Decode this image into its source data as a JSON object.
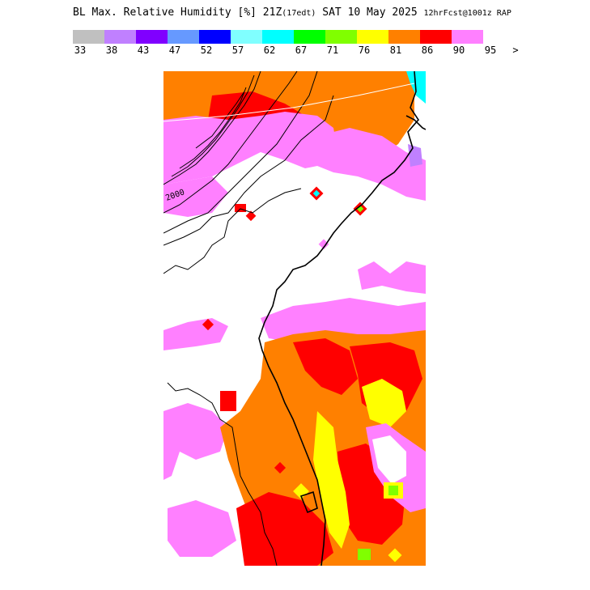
{
  "header": {
    "title": "BL Max. Relative Humidity [%] 21Z",
    "local_time": "(17edt)",
    "date": "SAT 10 May 2025",
    "forecast": "12hrFcst@1001z RAP"
  },
  "legend": {
    "colors": [
      "#c0c0c0",
      "#c080ff",
      "#8000ff",
      "#6699ff",
      "#0000ff",
      "#80ffff",
      "#00ffff",
      "#00ff00",
      "#80ff00",
      "#ffff00",
      "#ff8000",
      "#ff0000",
      "#ff80ff"
    ],
    "ticks": [
      "33",
      "38",
      "43",
      "47",
      "52",
      "57",
      "62",
      "67",
      "71",
      "76",
      "81",
      "86",
      "90",
      "95",
      ">"
    ]
  },
  "map": {
    "contour_label": "2000",
    "colors": {
      "white": "#ffffff",
      "pink": "#ff80ff",
      "red": "#ff0000",
      "orange": "#ff8000",
      "yellow": "#ffff00",
      "green": "#80ff00",
      "cyan": "#00ffff",
      "purple": "#c080ff"
    }
  }
}
